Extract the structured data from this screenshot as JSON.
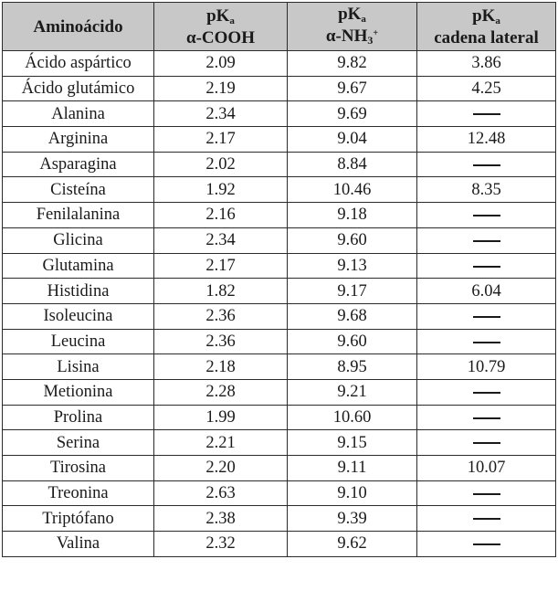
{
  "table": {
    "headers": {
      "col0": "Aminoácido",
      "col1": {
        "top": "pK",
        "sub": "a",
        "bottom": "α-COOH"
      },
      "col2": {
        "top": "pK",
        "sub": "a",
        "bottom_pre": "α-NH",
        "bottom_sub": "3",
        "bottom_sup": "+"
      },
      "col3": {
        "top": "pK",
        "sub": "a",
        "bottom": "cadena lateral"
      }
    },
    "rows": [
      {
        "name": "Ácido aspártico",
        "cooh": "2.09",
        "nh3": "9.82",
        "side": "3.86"
      },
      {
        "name": "Ácido glutámico",
        "cooh": "2.19",
        "nh3": "9.67",
        "side": "4.25"
      },
      {
        "name": "Alanina",
        "cooh": "2.34",
        "nh3": "9.69",
        "side": ""
      },
      {
        "name": "Arginina",
        "cooh": "2.17",
        "nh3": "9.04",
        "side": "12.48"
      },
      {
        "name": "Asparagina",
        "cooh": "2.02",
        "nh3": "8.84",
        "side": ""
      },
      {
        "name": "Cisteína",
        "cooh": "1.92",
        "nh3": "10.46",
        "side": "8.35"
      },
      {
        "name": "Fenilalanina",
        "cooh": "2.16",
        "nh3": "9.18",
        "side": ""
      },
      {
        "name": "Glicina",
        "cooh": "2.34",
        "nh3": "9.60",
        "side": ""
      },
      {
        "name": "Glutamina",
        "cooh": "2.17",
        "nh3": "9.13",
        "side": ""
      },
      {
        "name": "Histidina",
        "cooh": "1.82",
        "nh3": "9.17",
        "side": "6.04"
      },
      {
        "name": "Isoleucina",
        "cooh": "2.36",
        "nh3": "9.68",
        "side": ""
      },
      {
        "name": "Leucina",
        "cooh": "2.36",
        "nh3": "9.60",
        "side": ""
      },
      {
        "name": "Lisina",
        "cooh": "2.18",
        "nh3": "8.95",
        "side": "10.79"
      },
      {
        "name": "Metionina",
        "cooh": "2.28",
        "nh3": "9.21",
        "side": ""
      },
      {
        "name": "Prolina",
        "cooh": "1.99",
        "nh3": "10.60",
        "side": ""
      },
      {
        "name": "Serina",
        "cooh": "2.21",
        "nh3": "9.15",
        "side": ""
      },
      {
        "name": "Tirosina",
        "cooh": "2.20",
        "nh3": "9.11",
        "side": "10.07"
      },
      {
        "name": "Treonina",
        "cooh": "2.63",
        "nh3": "9.10",
        "side": ""
      },
      {
        "name": "Triptófano",
        "cooh": "2.38",
        "nh3": "9.39",
        "side": ""
      },
      {
        "name": "Valina",
        "cooh": "2.32",
        "nh3": "9.62",
        "side": ""
      }
    ]
  }
}
